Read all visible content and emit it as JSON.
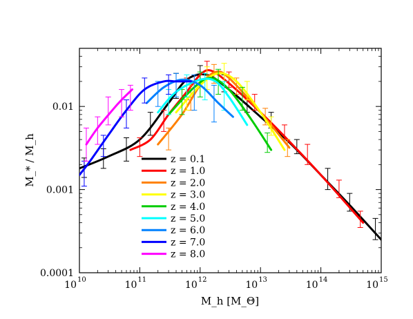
{
  "chart_data": {
    "type": "line",
    "title": "",
    "xlabel": "M_h [M_Θ]",
    "ylabel": "M_* / M_h",
    "xscale": "log",
    "yscale": "log",
    "xlim": [
      10000000000.0,
      1000000000000000.0
    ],
    "ylim": [
      0.0001,
      0.05
    ],
    "grid": false,
    "legend_position": "lower-left",
    "x_ticks": [
      {
        "base": "10",
        "exp": "10",
        "value": 10000000000.0
      },
      {
        "base": "10",
        "exp": "11",
        "value": 100000000000.0
      },
      {
        "base": "10",
        "exp": "12",
        "value": 1000000000000.0
      },
      {
        "base": "10",
        "exp": "13",
        "value": 10000000000000.0
      },
      {
        "base": "10",
        "exp": "14",
        "value": 100000000000000.0
      },
      {
        "base": "10",
        "exp": "15",
        "value": 1000000000000000.0
      }
    ],
    "y_ticks": [
      {
        "label": "0.0001",
        "value": 0.0001
      },
      {
        "label": "0.001",
        "value": 0.001
      },
      {
        "label": "0.01",
        "value": 0.01
      }
    ],
    "series": [
      {
        "name": "z = 0.1",
        "color": "#000000",
        "x": [
          10000000000.0,
          30000000000.0,
          100000000000.0,
          300000000000.0,
          600000000000.0,
          1300000000000.0,
          3000000000000.0,
          10000000000000.0,
          30000000000000.0,
          100000000000000.0,
          300000000000000.0,
          1000000000000000.0
        ],
        "y": [
          0.0018,
          0.0025,
          0.004,
          0.011,
          0.021,
          0.024,
          0.016,
          0.0075,
          0.0037,
          0.0015,
          0.00065,
          0.00025
        ],
        "errors": [
          {
            "x": 12000000000.0,
            "lo": 0.0014,
            "hi": 0.0024
          },
          {
            "x": 25000000000.0,
            "lo": 0.0018,
            "hi": 0.0031
          },
          {
            "x": 60000000000.0,
            "lo": 0.0022,
            "hi": 0.0042
          },
          {
            "x": 150000000000.0,
            "lo": 0.0045,
            "hi": 0.0085
          },
          {
            "x": 400000000000.0,
            "lo": 0.0125,
            "hi": 0.025
          },
          {
            "x": 1000000000000.0,
            "lo": 0.019,
            "hi": 0.031
          },
          {
            "x": 2500000000000.0,
            "lo": 0.015,
            "hi": 0.024
          },
          {
            "x": 6000000000000.0,
            "lo": 0.0085,
            "hi": 0.013
          },
          {
            "x": 15000000000000.0,
            "lo": 0.0055,
            "hi": 0.0085
          },
          {
            "x": 40000000000000.0,
            "lo": 0.0027,
            "hi": 0.004
          },
          {
            "x": 130000000000000.0,
            "lo": 0.001,
            "hi": 0.0018
          },
          {
            "x": 300000000000000.0,
            "lo": 0.00055,
            "hi": 0.0009
          },
          {
            "x": 800000000000000.0,
            "lo": 0.00025,
            "hi": 0.00045
          }
        ]
      },
      {
        "name": "z = 1.0",
        "color": "#ff0000",
        "x": [
          70000000000.0,
          150000000000.0,
          300000000000.0,
          600000000000.0,
          1000000000000.0,
          1500000000000.0,
          3000000000000.0,
          10000000000000.0,
          30000000000000.0,
          100000000000000.0,
          500000000000000.0
        ],
        "y": [
          0.003,
          0.004,
          0.008,
          0.015,
          0.024,
          0.027,
          0.019,
          0.0085,
          0.0038,
          0.0015,
          0.0004
        ],
        "errors": [
          {
            "x": 100000000000.0,
            "lo": 0.0025,
            "hi": 0.0042
          },
          {
            "x": 250000000000.0,
            "lo": 0.005,
            "hi": 0.009
          },
          {
            "x": 600000000000.0,
            "lo": 0.012,
            "hi": 0.022
          },
          {
            "x": 1300000000000.0,
            "lo": 0.022,
            "hi": 0.035
          },
          {
            "x": 3000000000000.0,
            "lo": 0.017,
            "hi": 0.026
          },
          {
            "x": 8000000000000.0,
            "lo": 0.009,
            "hi": 0.014
          },
          {
            "x": 25000000000000.0,
            "lo": 0.004,
            "hi": 0.006
          },
          {
            "x": 60000000000000.0,
            "lo": 0.002,
            "hi": 0.0035
          },
          {
            "x": 200000000000000.0,
            "lo": 0.0008,
            "hi": 0.0013
          },
          {
            "x": 450000000000000.0,
            "lo": 0.00035,
            "hi": 0.00055
          }
        ]
      },
      {
        "name": "z = 2.0",
        "color": "#ff8000",
        "x": [
          200000000000.0,
          500000000000.0,
          1000000000000.0,
          1800000000000.0,
          3000000000000.0,
          10000000000000.0,
          30000000000000.0
        ],
        "y": [
          0.0035,
          0.008,
          0.018,
          0.026,
          0.022,
          0.0085,
          0.0032
        ],
        "errors": [
          {
            "x": 300000000000.0,
            "lo": 0.003,
            "hi": 0.0055
          },
          {
            "x": 700000000000.0,
            "lo": 0.009,
            "hi": 0.018
          },
          {
            "x": 1700000000000.0,
            "lo": 0.019,
            "hi": 0.032
          },
          {
            "x": 4000000000000.0,
            "lo": 0.014,
            "hi": 0.022
          },
          {
            "x": 12000000000000.0,
            "lo": 0.006,
            "hi": 0.0095
          },
          {
            "x": 28000000000000.0,
            "lo": 0.0025,
            "hi": 0.004
          }
        ]
      },
      {
        "name": "z = 3.0",
        "color": "#ffff00",
        "x": [
          400000000000.0,
          1000000000000.0,
          2000000000000.0,
          4000000000000.0,
          10000000000000.0,
          25000000000000.0
        ],
        "y": [
          0.0085,
          0.018,
          0.025,
          0.02,
          0.0085,
          0.003
        ],
        "errors": [
          {
            "x": 600000000000.0,
            "lo": 0.009,
            "hi": 0.018
          },
          {
            "x": 1300000000000.0,
            "lo": 0.016,
            "hi": 0.03
          },
          {
            "x": 2500000000000.0,
            "lo": 0.02,
            "hi": 0.033
          },
          {
            "x": 6000000000000.0,
            "lo": 0.012,
            "hi": 0.02
          },
          {
            "x": 15000000000000.0,
            "lo": 0.0045,
            "hi": 0.0075
          }
        ]
      },
      {
        "name": "z = 4.0",
        "color": "#00cc00",
        "x": [
          300000000000.0,
          800000000000.0,
          1500000000000.0,
          3000000000000.0,
          7000000000000.0,
          15000000000000.0
        ],
        "y": [
          0.008,
          0.017,
          0.022,
          0.016,
          0.007,
          0.003
        ],
        "errors": [
          {
            "x": 500000000000.0,
            "lo": 0.008,
            "hi": 0.016
          },
          {
            "x": 1000000000000.0,
            "lo": 0.013,
            "hi": 0.026
          },
          {
            "x": 2000000000000.0,
            "lo": 0.014,
            "hi": 0.028
          },
          {
            "x": 5000000000000.0,
            "lo": 0.009,
            "hi": 0.017
          },
          {
            "x": 13000000000000.0,
            "lo": 0.0028,
            "hi": 0.0048
          }
        ]
      },
      {
        "name": "z = 5.0",
        "color": "#00ffff",
        "x": [
          200000000000.0,
          400000000000.0,
          1000000000000.0,
          1800000000000.0,
          3000000000000.0,
          6000000000000.0
        ],
        "y": [
          0.0085,
          0.015,
          0.021,
          0.02,
          0.013,
          0.006
        ],
        "errors": [
          {
            "x": 300000000000.0,
            "lo": 0.008,
            "hi": 0.016
          },
          {
            "x": 600000000000.0,
            "lo": 0.013,
            "hi": 0.024
          },
          {
            "x": 1200000000000.0,
            "lo": 0.012,
            "hi": 0.025
          },
          {
            "x": 2500000000000.0,
            "lo": 0.009,
            "hi": 0.02
          }
        ]
      },
      {
        "name": "z = 6.0",
        "color": "#0080ff",
        "x": [
          130000000000.0,
          250000000000.0,
          500000000000.0,
          1000000000000.0,
          2000000000000.0,
          3500000000000.0
        ],
        "y": [
          0.011,
          0.017,
          0.021,
          0.018,
          0.011,
          0.0075
        ],
        "errors": [
          {
            "x": 200000000000.0,
            "lo": 0.01,
            "hi": 0.02
          },
          {
            "x": 400000000000.0,
            "lo": 0.013,
            "hi": 0.025
          },
          {
            "x": 800000000000.0,
            "lo": 0.009,
            "hi": 0.024
          },
          {
            "x": 1700000000000.0,
            "lo": 0.0065,
            "hi": 0.018
          }
        ]
      },
      {
        "name": "z = 7.0",
        "color": "#0000ff",
        "x": [
          10000000000.0,
          15000000000.0,
          30000000000.0,
          60000000000.0,
          120000000000.0,
          250000000000.0,
          400000000000.0,
          700000000000.0
        ],
        "y": [
          0.0015,
          0.0022,
          0.0045,
          0.009,
          0.016,
          0.02,
          0.02,
          0.02
        ],
        "errors": [
          {
            "x": 12000000000.0,
            "lo": 0.0011,
            "hi": 0.0022
          },
          {
            "x": 25000000000.0,
            "lo": 0.0025,
            "hi": 0.0045
          },
          {
            "x": 60000000000.0,
            "lo": 0.0055,
            "hi": 0.012
          },
          {
            "x": 120000000000.0,
            "lo": 0.011,
            "hi": 0.022
          },
          {
            "x": 300000000000.0,
            "lo": 0.014,
            "hi": 0.024
          }
        ]
      },
      {
        "name": "z = 8.0",
        "color": "#ff00ff",
        "x": [
          13000000000.0,
          20000000000.0,
          35000000000.0,
          50000000000.0,
          75000000000.0
        ],
        "y": [
          0.0035,
          0.0055,
          0.009,
          0.012,
          0.016
        ],
        "errors": [
          {
            "x": 13000000000.0,
            "lo": 0.0022,
            "hi": 0.0055
          },
          {
            "x": 20000000000.0,
            "lo": 0.0035,
            "hi": 0.0075
          },
          {
            "x": 30000000000.0,
            "lo": 0.006,
            "hi": 0.013
          },
          {
            "x": 50000000000.0,
            "lo": 0.0075,
            "hi": 0.016
          },
          {
            "x": 70000000000.0,
            "lo": 0.009,
            "hi": 0.018
          }
        ]
      }
    ]
  }
}
